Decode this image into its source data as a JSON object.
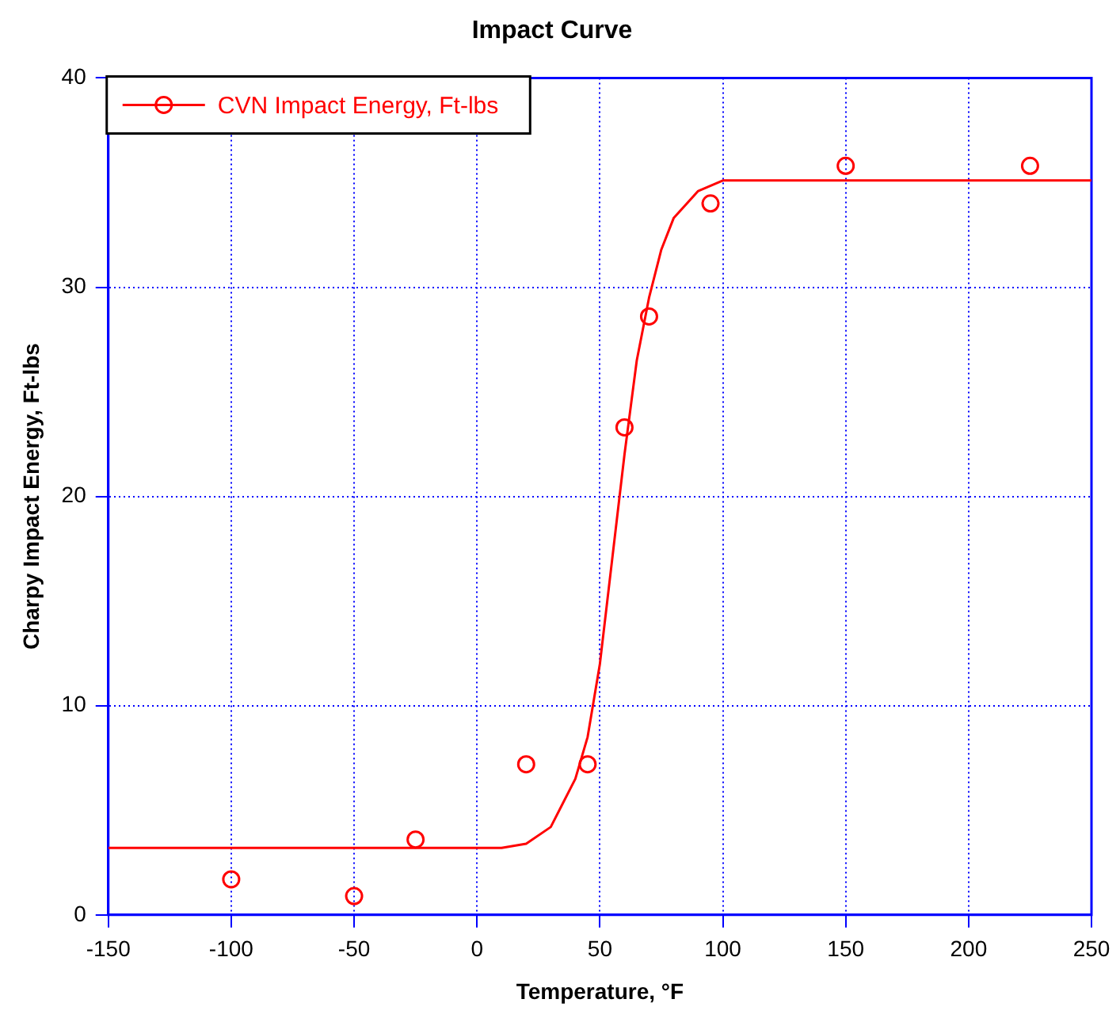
{
  "chart_data": {
    "type": "scatter",
    "title": "Impact Curve",
    "xlabel": "Temperature, °F",
    "ylabel": "Charpy Impact Energy, Ft-lbs",
    "xlim": [
      -150,
      250
    ],
    "xticks": [
      -150,
      -100,
      -50,
      0,
      50,
      100,
      150,
      200,
      250
    ],
    "ylim": [
      0,
      40
    ],
    "yticks": [
      0,
      10,
      20,
      30,
      40
    ],
    "grid": true,
    "legend": "top left",
    "marker": "circle",
    "series": [
      {
        "name": "CVN Impact Energy, Ft-lbs",
        "color": "#ff0000",
        "type": "scatter",
        "x": [
          -100,
          -50,
          -25,
          20,
          45,
          60,
          70,
          95,
          150,
          225
        ],
        "values": [
          1.7,
          0.9,
          3.6,
          7.2,
          7.2,
          23.3,
          28.6,
          34.0,
          35.8,
          35.8
        ]
      },
      {
        "color": "#ff0000",
        "type": "line",
        "marker": "none",
        "x": [
          -150,
          0,
          10,
          20,
          30,
          40,
          45,
          50,
          55,
          60,
          65,
          70,
          75,
          80,
          90,
          100,
          250
        ],
        "values": [
          3.2,
          3.2,
          3.2,
          3.4,
          4.2,
          6.5,
          8.5,
          12,
          17,
          22,
          26.5,
          29.5,
          31.8,
          33.3,
          34.6,
          35.1,
          35.1
        ]
      }
    ]
  }
}
